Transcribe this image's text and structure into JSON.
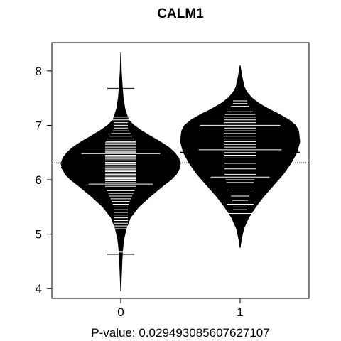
{
  "chart_data": {
    "type": "beanplot",
    "title": "CALM1",
    "xlabel": "P-value: 0.029493085607627107",
    "ylabel": "",
    "ylim": [
      3.82,
      8.52
    ],
    "yticks": [
      4,
      5,
      6,
      7,
      8
    ],
    "categories": [
      "0",
      "1"
    ],
    "overall_mean": 6.31,
    "grid": false,
    "legend": "none",
    "colors": {
      "bean": "#000000",
      "lines": "#ffffff",
      "background": "#ffffff"
    },
    "groups": [
      {
        "category": "0",
        "mean": 6.22,
        "range": [
          3.95,
          8.35
        ],
        "density": [
          [
            3.95,
            0.0
          ],
          [
            4.2,
            0.01
          ],
          [
            4.5,
            0.02
          ],
          [
            4.7,
            0.03
          ],
          [
            4.9,
            0.05
          ],
          [
            5.1,
            0.09
          ],
          [
            5.3,
            0.16
          ],
          [
            5.5,
            0.3
          ],
          [
            5.7,
            0.5
          ],
          [
            5.9,
            0.72
          ],
          [
            6.0,
            0.84
          ],
          [
            6.1,
            0.93
          ],
          [
            6.2,
            0.98
          ],
          [
            6.3,
            1.0
          ],
          [
            6.4,
            0.97
          ],
          [
            6.5,
            0.9
          ],
          [
            6.6,
            0.8
          ],
          [
            6.7,
            0.66
          ],
          [
            6.8,
            0.5
          ],
          [
            6.9,
            0.35
          ],
          [
            7.0,
            0.22
          ],
          [
            7.1,
            0.13
          ],
          [
            7.3,
            0.07
          ],
          [
            7.5,
            0.04
          ],
          [
            7.8,
            0.02
          ],
          [
            8.0,
            0.01
          ],
          [
            8.35,
            0.0
          ]
        ],
        "points": [
          4.63,
          4.67,
          5.1,
          5.15,
          5.2,
          5.25,
          5.3,
          5.35,
          5.4,
          5.45,
          5.5,
          5.55,
          5.6,
          5.65,
          5.7,
          5.75,
          5.8,
          5.85,
          5.88,
          5.92,
          5.95,
          5.98,
          6.0,
          6.02,
          6.05,
          6.08,
          6.1,
          6.12,
          6.15,
          6.18,
          6.2,
          6.22,
          6.25,
          6.28,
          6.3,
          6.32,
          6.35,
          6.38,
          6.4,
          6.42,
          6.45,
          6.48,
          6.5,
          6.52,
          6.55,
          6.58,
          6.6,
          6.62,
          6.65,
          6.68,
          6.7,
          6.75,
          6.8,
          6.85,
          6.9,
          6.95,
          7.0,
          7.05,
          7.1,
          7.15,
          7.68
        ],
        "wide_marks": [
          4.63,
          5.92,
          6.16,
          6.48,
          6.78,
          7.1,
          7.68
        ]
      },
      {
        "category": "1",
        "mean": 6.5,
        "range": [
          4.75,
          8.1
        ],
        "density": [
          [
            4.75,
            0.0
          ],
          [
            4.9,
            0.02
          ],
          [
            5.1,
            0.06
          ],
          [
            5.3,
            0.14
          ],
          [
            5.5,
            0.26
          ],
          [
            5.7,
            0.4
          ],
          [
            5.9,
            0.56
          ],
          [
            6.1,
            0.72
          ],
          [
            6.3,
            0.85
          ],
          [
            6.5,
            0.95
          ],
          [
            6.7,
            1.0
          ],
          [
            6.9,
            0.98
          ],
          [
            7.0,
            0.93
          ],
          [
            7.1,
            0.82
          ],
          [
            7.2,
            0.66
          ],
          [
            7.3,
            0.48
          ],
          [
            7.4,
            0.32
          ],
          [
            7.5,
            0.2
          ],
          [
            7.6,
            0.12
          ],
          [
            7.7,
            0.07
          ],
          [
            7.9,
            0.03
          ],
          [
            8.1,
            0.0
          ]
        ],
        "points": [
          5.38,
          5.45,
          5.5,
          5.55,
          5.62,
          5.7,
          5.85,
          5.95,
          6.0,
          6.05,
          6.1,
          6.2,
          6.3,
          6.4,
          6.45,
          6.5,
          6.55,
          6.6,
          6.65,
          6.7,
          6.75,
          6.8,
          6.85,
          6.9,
          6.95,
          7.0,
          7.05,
          7.1,
          7.15,
          7.2,
          7.25,
          7.3,
          7.35,
          7.4,
          7.45
        ],
        "wide_marks": [
          5.38,
          5.55,
          6.05,
          6.55,
          7.0
        ]
      }
    ]
  }
}
